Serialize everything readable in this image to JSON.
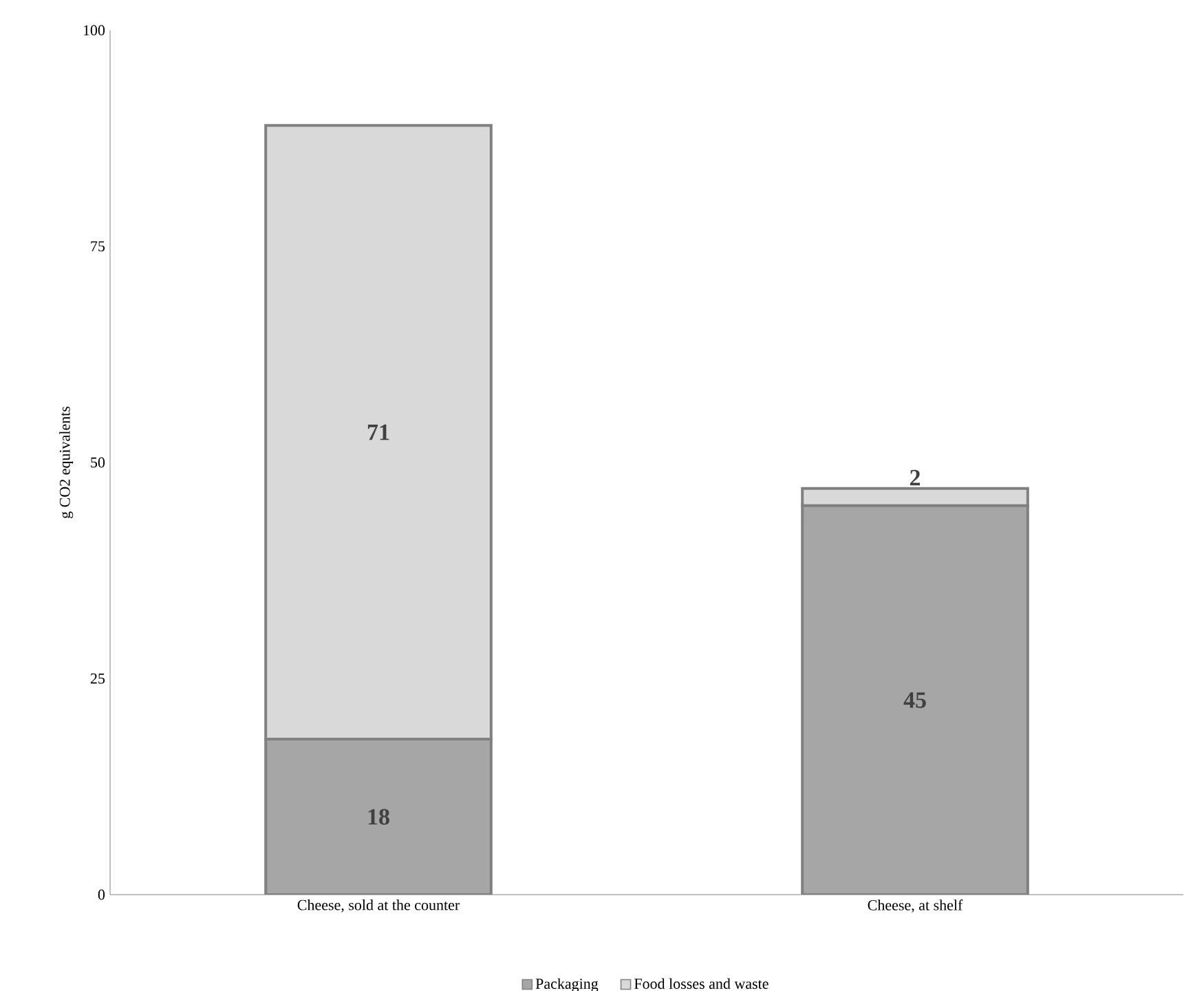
{
  "chart_data": {
    "type": "bar",
    "stacked": true,
    "ylabel": "g CO2 equivalents",
    "categories": [
      "Cheese, sold at the counter",
      "Cheese, at shelf"
    ],
    "series": [
      {
        "name": "Packaging",
        "color": "#a6a6a6",
        "values": [
          18,
          45
        ]
      },
      {
        "name": "Food losses and waste",
        "color": "#d9d9d9",
        "values": [
          71,
          2
        ]
      }
    ],
    "ylim": [
      0,
      100
    ],
    "yticks": [
      0,
      25,
      50,
      75,
      100
    ],
    "grid": false,
    "legend": "bottom",
    "data_labels": true
  }
}
